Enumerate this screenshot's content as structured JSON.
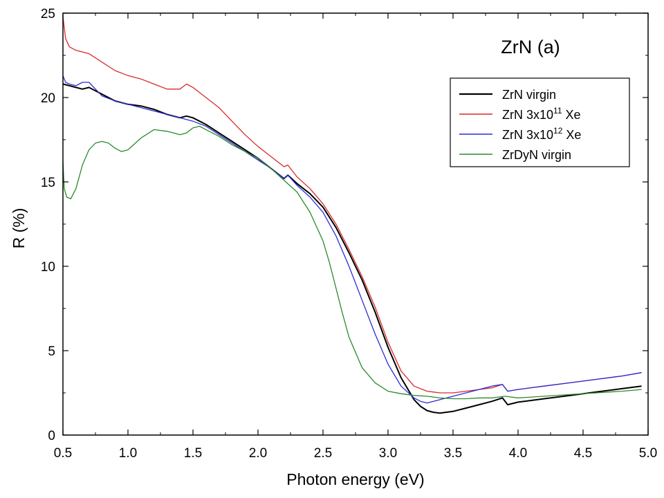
{
  "chart_data": {
    "type": "line",
    "title": "ZrN (a)",
    "xlabel": "Photon energy (eV)",
    "ylabel": "R (%)",
    "xlim": [
      0.5,
      5.0
    ],
    "ylim": [
      0,
      25
    ],
    "xticks": [
      "0.5",
      "1.0",
      "1.5",
      "2.0",
      "2.5",
      "3.0",
      "3.5",
      "4.0",
      "4.5",
      "5.0"
    ],
    "yticks": [
      "0",
      "5",
      "10",
      "15",
      "20",
      "25"
    ],
    "grid": false,
    "legend_position": "top-right",
    "series": [
      {
        "name": "ZrN virgin",
        "legend_label": {
          "pre": "ZrN virgin",
          "sup": "",
          "post": ""
        },
        "color": "#000000",
        "x": [
          0.5,
          0.55,
          0.6,
          0.65,
          0.7,
          0.8,
          0.9,
          1.0,
          1.1,
          1.2,
          1.3,
          1.4,
          1.45,
          1.5,
          1.6,
          1.7,
          1.8,
          1.9,
          2.0,
          2.1,
          2.2,
          2.23,
          2.3,
          2.4,
          2.5,
          2.6,
          2.7,
          2.8,
          2.9,
          3.0,
          3.1,
          3.2,
          3.25,
          3.3,
          3.35,
          3.4,
          3.5,
          3.6,
          3.7,
          3.8,
          3.88,
          3.92,
          4.0,
          4.2,
          4.4,
          4.6,
          4.8,
          4.95
        ],
        "y": [
          20.8,
          20.7,
          20.6,
          20.5,
          20.6,
          20.2,
          19.8,
          19.6,
          19.5,
          19.3,
          19.0,
          18.8,
          18.9,
          18.8,
          18.4,
          17.9,
          17.4,
          16.9,
          16.4,
          15.8,
          15.2,
          15.4,
          14.9,
          14.3,
          13.5,
          12.3,
          10.8,
          9.2,
          7.3,
          5.2,
          3.4,
          2.1,
          1.7,
          1.45,
          1.35,
          1.3,
          1.4,
          1.6,
          1.8,
          2.0,
          2.2,
          1.8,
          1.95,
          2.15,
          2.35,
          2.55,
          2.75,
          2.9
        ]
      },
      {
        "name": "ZrN 3x10^11 Xe",
        "legend_label": {
          "pre": "ZrN 3x10",
          "sup": "11",
          "post": " Xe"
        },
        "color": "#d62a2a",
        "x": [
          0.5,
          0.52,
          0.55,
          0.6,
          0.65,
          0.7,
          0.8,
          0.9,
          1.0,
          1.1,
          1.2,
          1.3,
          1.4,
          1.45,
          1.5,
          1.6,
          1.7,
          1.8,
          1.9,
          2.0,
          2.1,
          2.2,
          2.23,
          2.3,
          2.4,
          2.5,
          2.6,
          2.7,
          2.8,
          2.9,
          3.0,
          3.1,
          3.2,
          3.3,
          3.35,
          3.4,
          3.5,
          3.6,
          3.7,
          3.8,
          3.88,
          3.92,
          4.0,
          4.2,
          4.4,
          4.6,
          4.8,
          4.95
        ],
        "y": [
          24.8,
          23.5,
          23.0,
          22.8,
          22.7,
          22.6,
          22.1,
          21.6,
          21.3,
          21.1,
          20.8,
          20.5,
          20.5,
          20.8,
          20.6,
          20.0,
          19.4,
          18.6,
          17.8,
          17.1,
          16.5,
          15.9,
          16.0,
          15.3,
          14.6,
          13.7,
          12.5,
          11.0,
          9.4,
          7.6,
          5.5,
          3.8,
          2.9,
          2.6,
          2.55,
          2.5,
          2.5,
          2.6,
          2.7,
          2.8,
          3.0,
          2.6,
          2.7,
          2.9,
          3.1,
          3.3,
          3.5,
          3.7
        ]
      },
      {
        "name": "ZrN 3x10^12 Xe",
        "legend_label": {
          "pre": "ZrN 3x10",
          "sup": "12",
          "post": " Xe"
        },
        "color": "#2a2ad6",
        "x": [
          0.5,
          0.52,
          0.55,
          0.6,
          0.65,
          0.7,
          0.8,
          0.9,
          1.0,
          1.1,
          1.2,
          1.3,
          1.4,
          1.45,
          1.5,
          1.6,
          1.7,
          1.8,
          1.9,
          2.0,
          2.1,
          2.2,
          2.23,
          2.3,
          2.4,
          2.5,
          2.6,
          2.7,
          2.8,
          2.9,
          3.0,
          3.1,
          3.2,
          3.25,
          3.3,
          3.35,
          3.4,
          3.5,
          3.6,
          3.7,
          3.8,
          3.88,
          3.92,
          4.0,
          4.2,
          4.4,
          4.6,
          4.8,
          4.95
        ],
        "y": [
          21.3,
          20.9,
          20.8,
          20.7,
          20.9,
          20.9,
          20.1,
          19.8,
          19.6,
          19.4,
          19.2,
          19.0,
          18.8,
          18.7,
          18.6,
          18.3,
          17.8,
          17.3,
          16.8,
          16.3,
          15.8,
          15.2,
          15.4,
          14.8,
          14.1,
          13.2,
          11.8,
          10.0,
          8.0,
          6.0,
          4.2,
          2.9,
          2.2,
          2.0,
          1.9,
          2.0,
          2.1,
          2.3,
          2.5,
          2.7,
          2.9,
          3.0,
          2.6,
          2.7,
          2.9,
          3.1,
          3.3,
          3.5,
          3.7
        ]
      },
      {
        "name": "ZrDyN virgin",
        "legend_label": {
          "pre": "ZrDyN virgin",
          "sup": "",
          "post": ""
        },
        "color": "#2a8a2a",
        "x": [
          0.5,
          0.51,
          0.53,
          0.56,
          0.6,
          0.65,
          0.7,
          0.75,
          0.8,
          0.85,
          0.9,
          0.95,
          1.0,
          1.1,
          1.2,
          1.3,
          1.4,
          1.45,
          1.5,
          1.55,
          1.6,
          1.7,
          1.8,
          1.9,
          2.0,
          2.1,
          2.2,
          2.3,
          2.4,
          2.5,
          2.55,
          2.6,
          2.65,
          2.7,
          2.8,
          2.9,
          3.0,
          3.1,
          3.2,
          3.3,
          3.4,
          3.5,
          3.6,
          3.7,
          3.8,
          3.9,
          4.0,
          4.2,
          4.4,
          4.6,
          4.8,
          4.95
        ],
        "y": [
          16.2,
          14.6,
          14.1,
          14.0,
          14.6,
          16.0,
          16.9,
          17.3,
          17.4,
          17.3,
          17.0,
          16.8,
          16.9,
          17.6,
          18.1,
          18.0,
          17.8,
          17.9,
          18.2,
          18.3,
          18.1,
          17.7,
          17.2,
          16.8,
          16.4,
          15.8,
          15.1,
          14.4,
          13.2,
          11.5,
          10.2,
          8.7,
          7.2,
          5.8,
          4.0,
          3.1,
          2.6,
          2.45,
          2.35,
          2.3,
          2.2,
          2.15,
          2.15,
          2.2,
          2.2,
          2.3,
          2.2,
          2.3,
          2.4,
          2.5,
          2.6,
          2.7
        ]
      }
    ]
  }
}
